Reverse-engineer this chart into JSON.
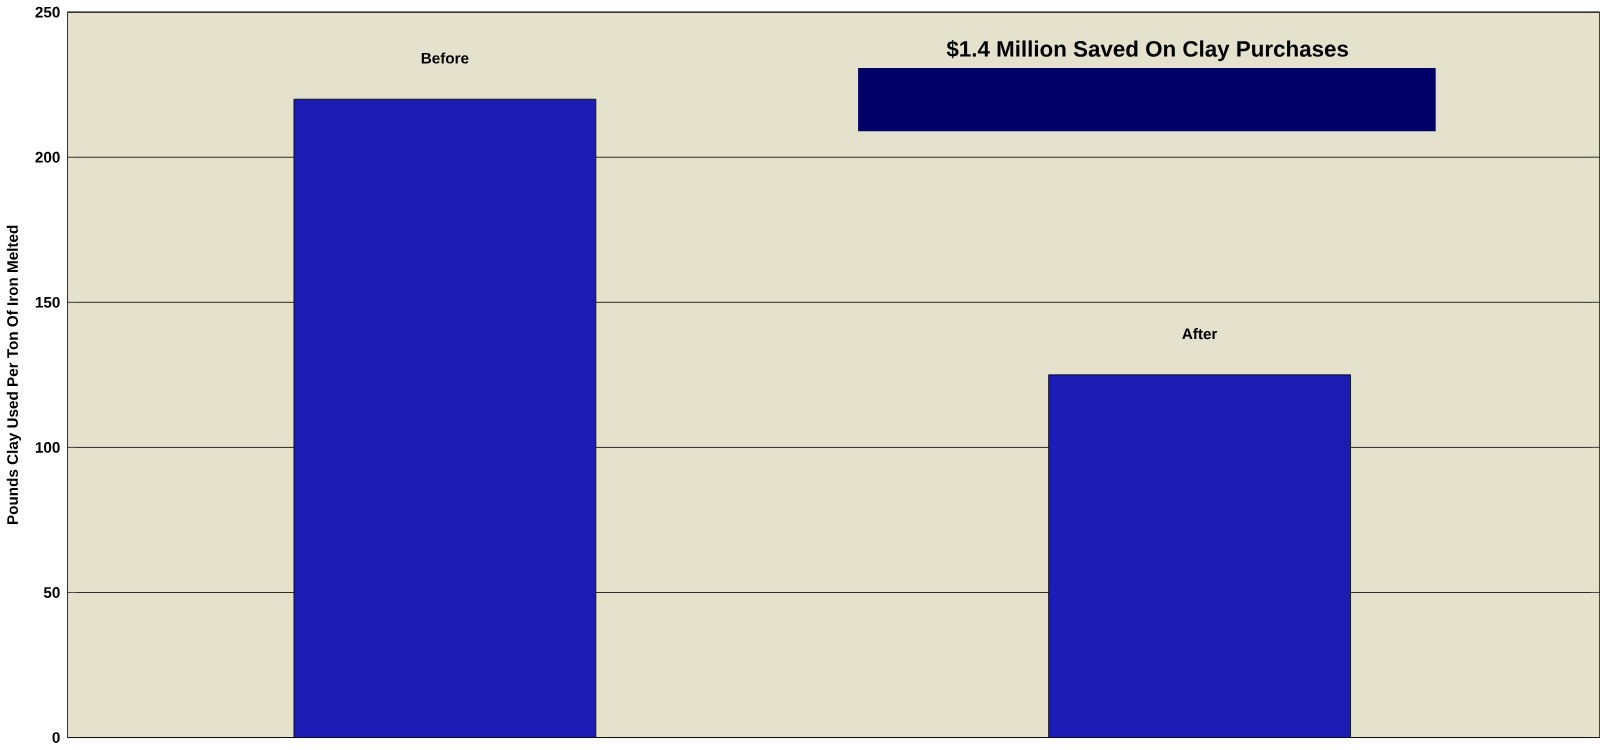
{
  "chart_data": {
    "type": "bar",
    "categories": [
      "Before",
      "After"
    ],
    "values": [
      220,
      125
    ],
    "color": "#1c1cb4",
    "ylabel": "Pounds Clay Used Per Ton Of Iron Melted",
    "ylim": [
      0,
      250
    ],
    "yticks": [
      0,
      50,
      100,
      150,
      200,
      250
    ],
    "grid": "y",
    "tick_labels": "y",
    "annotations": [
      "$1.4 Million Saved On Clay Purchases"
    ]
  }
}
